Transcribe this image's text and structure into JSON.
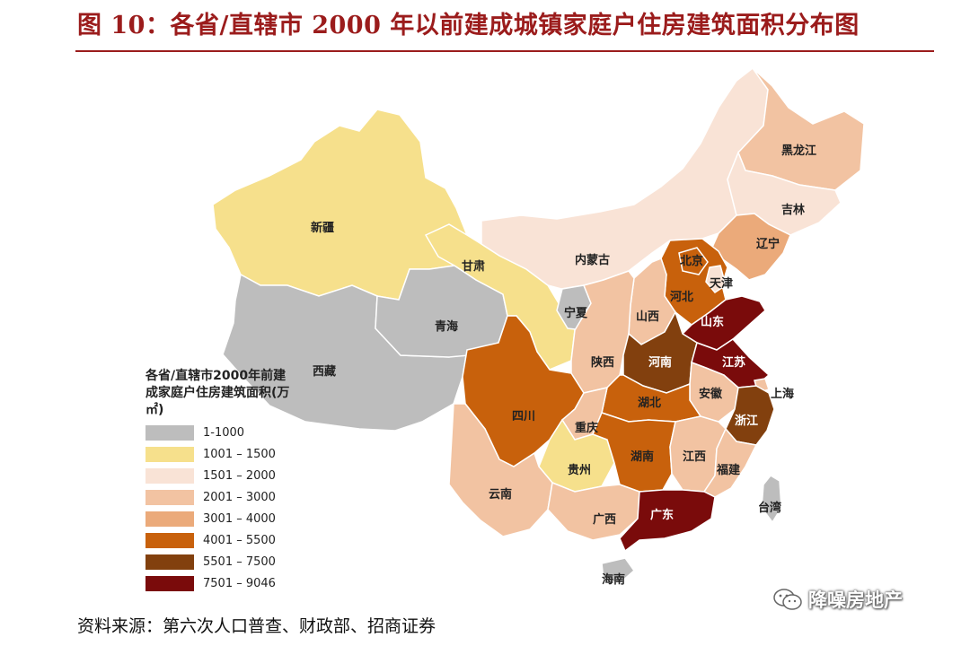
{
  "title": "图 10：各省/直辖市 2000 年以前建成城镇家庭户住房建筑面积分布图",
  "source": "资料来源：第六次人口普查、财政部、招商证券",
  "watermark": "降噪房地产",
  "legend": {
    "title": "各省/直辖市2000年前建成家庭户住房建筑面积(万㎡)",
    "items": [
      {
        "label": "1-1000",
        "color": "#bdbdbd"
      },
      {
        "label": "1001 – 1500",
        "color": "#f6e08c"
      },
      {
        "label": "1501 – 2000",
        "color": "#f9e3d6"
      },
      {
        "label": "2001 – 3000",
        "color": "#f2c3a2"
      },
      {
        "label": "3001 – 4000",
        "color": "#ebaa7a"
      },
      {
        "label": "4001 – 5500",
        "color": "#c8610c"
      },
      {
        "label": "5501 – 7500",
        "color": "#82400e"
      },
      {
        "label": "7501 – 9046",
        "color": "#7a0b0b"
      }
    ]
  },
  "provinces": {
    "xinjiang": "新疆",
    "xizang": "西藏",
    "qinghai": "青海",
    "gansu": "甘肃",
    "neimenggu": "内蒙古",
    "heilongjiang": "黑龙江",
    "jilin": "吉林",
    "liaoning": "辽宁",
    "beijing": "北京",
    "tianjin": "天津",
    "hebei": "河北",
    "shanxi": "山西",
    "shandong": "山东",
    "ningxia": "宁夏",
    "shaanxi": "陕西",
    "henan": "河南",
    "jiangsu": "江苏",
    "shanghai": "上海",
    "anhui": "安徽",
    "hubei": "湖北",
    "sichuan": "四川",
    "chongqing": "重庆",
    "zhejiang": "浙江",
    "guizhou": "贵州",
    "hunan": "湖南",
    "jiangxi": "江西",
    "fujian": "福建",
    "yunnan": "云南",
    "guangxi": "广西",
    "guangdong": "广东",
    "taiwan": "台湾",
    "hainan": "海南"
  }
}
